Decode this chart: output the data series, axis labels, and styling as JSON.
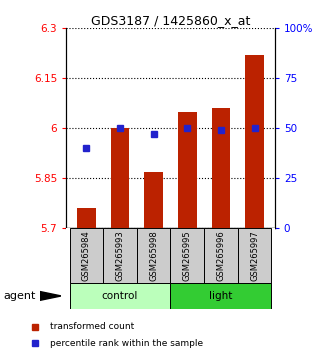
{
  "title": "GDS3187 / 1425860_x_at",
  "samples": [
    "GSM265984",
    "GSM265993",
    "GSM265998",
    "GSM265995",
    "GSM265996",
    "GSM265997"
  ],
  "groups": [
    "control",
    "control",
    "control",
    "light",
    "light",
    "light"
  ],
  "red_values": [
    5.76,
    6.0,
    5.87,
    6.05,
    6.06,
    6.22
  ],
  "blue_values_pct": [
    40,
    50,
    47,
    50,
    49,
    50
  ],
  "ylim_left": [
    5.7,
    6.3
  ],
  "ylim_right": [
    0,
    100
  ],
  "yticks_left": [
    5.7,
    5.85,
    6.0,
    6.15,
    6.3
  ],
  "yticks_right": [
    0,
    25,
    50,
    75,
    100
  ],
  "ytick_labels_left": [
    "5.7",
    "5.85",
    "6",
    "6.15",
    "6.3"
  ],
  "ytick_labels_right": [
    "0",
    "25",
    "50",
    "75",
    "100%"
  ],
  "bar_color": "#bb2200",
  "dot_color": "#2222cc",
  "control_color": "#bbffbb",
  "light_color": "#33cc33",
  "sample_box_color": "#cccccc",
  "bar_bottom": 5.7,
  "bar_width": 0.55,
  "agent_label": "agent",
  "legend_items": [
    "transformed count",
    "percentile rank within the sample"
  ]
}
